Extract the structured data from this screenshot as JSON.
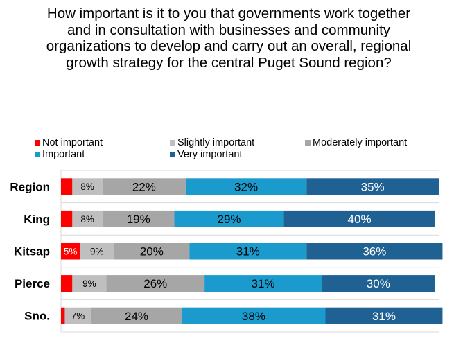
{
  "chart_data": {
    "type": "bar",
    "orientation": "horizontal",
    "stacked": true,
    "title": "How important is it to you that governments work together and in consultation with businesses and community organizations to develop and carry out an overall, regional growth strategy for the central Puget Sound region?",
    "categories": [
      "Region",
      "King",
      "Kitsap",
      "Pierce",
      "Sno."
    ],
    "series": [
      {
        "name": "Not important",
        "color": "#FF0000",
        "values": [
          3,
          3,
          5,
          3,
          1
        ]
      },
      {
        "name": "Slightly important",
        "color": "#BFBFBF",
        "values": [
          8,
          8,
          9,
          9,
          7
        ]
      },
      {
        "name": "Moderately important",
        "color": "#A6A6A6",
        "values": [
          22,
          19,
          20,
          26,
          24
        ]
      },
      {
        "name": "Important",
        "color": "#1B9ACE",
        "values": [
          32,
          29,
          31,
          31,
          38
        ]
      },
      {
        "name": "Very important",
        "color": "#1F6193",
        "values": [
          35,
          40,
          36,
          30,
          31
        ]
      }
    ],
    "xlim": [
      0,
      100
    ],
    "grid": true,
    "legend": "top",
    "data_labels": "shown for values of 5% and above"
  }
}
